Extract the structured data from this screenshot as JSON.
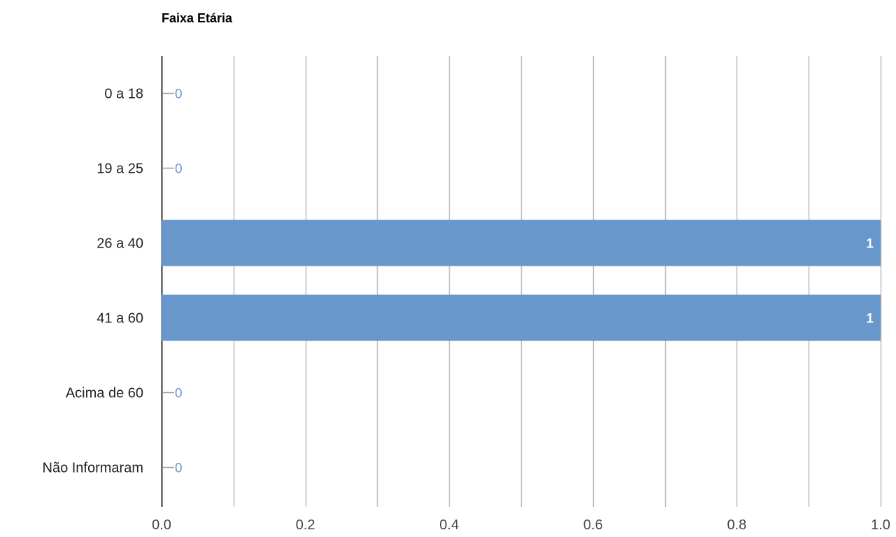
{
  "chart_data": {
    "type": "bar",
    "orientation": "horizontal",
    "title": "Faixa Etária",
    "categories": [
      "0 a 18",
      "19 a 25",
      "26 a 40",
      "41 a 60",
      "Acima de 60",
      "Não Informaram"
    ],
    "values": [
      0,
      0,
      1,
      1,
      0,
      0
    ],
    "data_labels": [
      "0",
      "0",
      "1",
      "1",
      "0",
      "0"
    ],
    "xlim": [
      0,
      1.0
    ],
    "x_ticks": [
      0.0,
      0.2,
      0.4,
      0.6,
      0.8,
      1.0
    ],
    "x_tick_labels": [
      "0.0",
      "0.2",
      "0.4",
      "0.6",
      "0.8",
      "1.0"
    ],
    "minor_gridlines": [
      0.1,
      0.3,
      0.5,
      0.7,
      0.9
    ],
    "grid": true,
    "legend": "none",
    "bar_color": "#6897cc",
    "gridline_color": "#bdbdbd",
    "axis_color": "#333333"
  }
}
